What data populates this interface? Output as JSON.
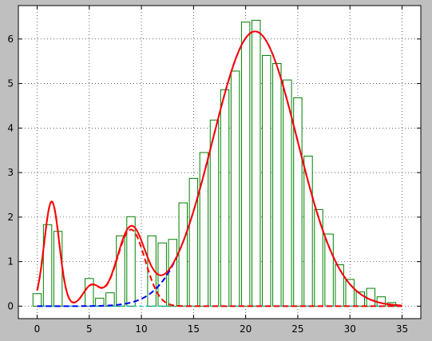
{
  "chart_data": {
    "type": "bar",
    "title": "",
    "xlabel": "",
    "ylabel": "",
    "xlim": [
      -1.8,
      36.8
    ],
    "ylim": [
      -0.28,
      6.75
    ],
    "grid": true,
    "x_ticks": [
      0,
      5,
      10,
      15,
      20,
      25,
      30,
      35
    ],
    "y_ticks": [
      0,
      1,
      2,
      3,
      4,
      5,
      6
    ],
    "x_tick_labels": [
      "0",
      "5",
      "10",
      "15",
      "20",
      "25",
      "30",
      "35"
    ],
    "y_tick_labels": [
      "0",
      "1",
      "2",
      "3",
      "4",
      "5",
      "6"
    ],
    "bar_width": 0.8,
    "bars": {
      "x": [
        0,
        1,
        2,
        3,
        4,
        5,
        6,
        7,
        8,
        9,
        10,
        11,
        12,
        13,
        14,
        15,
        16,
        17,
        18,
        19,
        20,
        21,
        22,
        23,
        24,
        25,
        26,
        27,
        28,
        29,
        30,
        31,
        32,
        33,
        34
      ],
      "values": [
        0.28,
        1.83,
        1.68,
        0,
        0,
        0.62,
        0.18,
        0.3,
        1.58,
        2.01,
        0,
        1.58,
        1.42,
        1.5,
        2.32,
        2.87,
        3.45,
        4.18,
        4.86,
        5.28,
        6.38,
        6.42,
        5.63,
        5.45,
        5.08,
        4.68,
        3.37,
        2.17,
        1.62,
        0.93,
        0.6,
        0.32,
        0.4,
        0.21,
        0.08
      ],
      "edge_color": "#008000",
      "fill_color": "#ffffff"
    },
    "curves": [
      {
        "style": "dashed",
        "color": "#0000ff",
        "components": [
          {
            "amp": 6.17,
            "mu": 20.9,
            "sigma": 4.05
          }
        ]
      },
      {
        "style": "dashed",
        "color": "#ff0000",
        "components": [
          {
            "amp": 2.35,
            "mu": 1.4,
            "sigma": 0.72
          },
          {
            "amp": 0.45,
            "mu": 5.2,
            "sigma": 0.8
          },
          {
            "amp": 1.72,
            "mu": 9.0,
            "sigma": 1.35
          }
        ]
      },
      {
        "style": "solid",
        "color": "#ff0000",
        "components": [
          {
            "amp": 2.35,
            "mu": 1.4,
            "sigma": 0.72
          },
          {
            "amp": 0.45,
            "mu": 5.2,
            "sigma": 0.8
          },
          {
            "amp": 1.72,
            "mu": 9.0,
            "sigma": 1.35
          },
          {
            "amp": 6.17,
            "mu": 20.9,
            "sigma": 4.05
          }
        ]
      }
    ],
    "curve_range": [
      0,
      35
    ],
    "baseline_color": "#00bfbf"
  }
}
